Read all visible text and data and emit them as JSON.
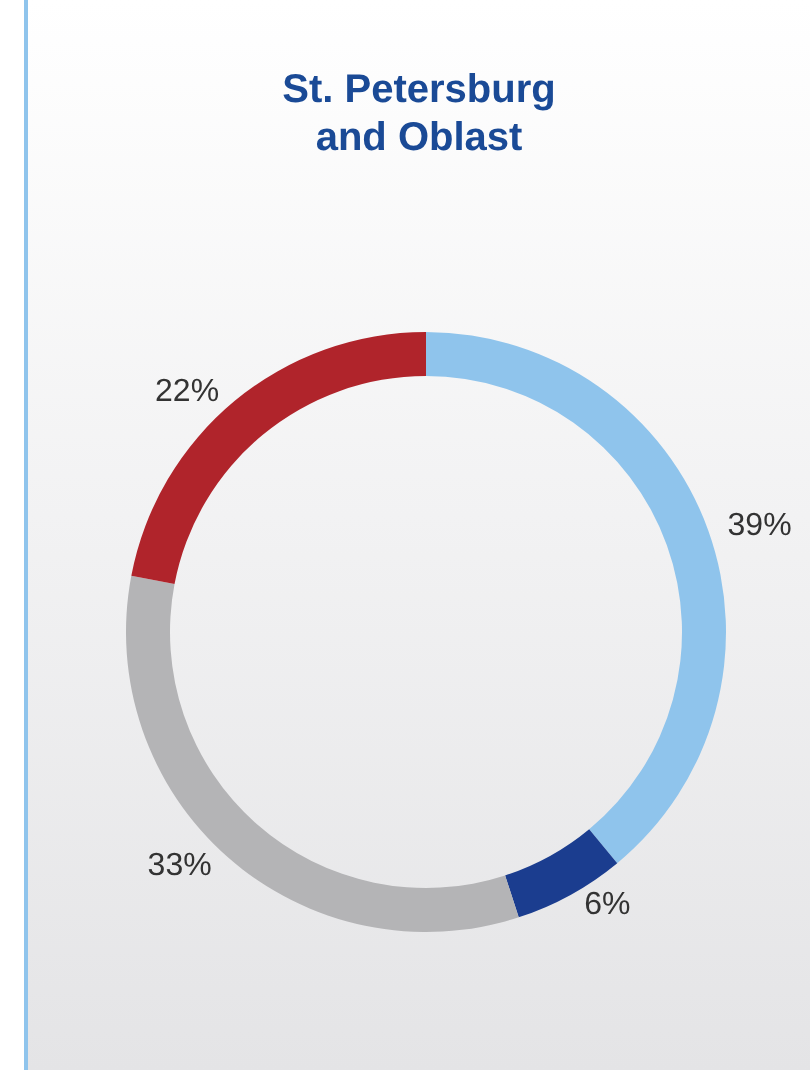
{
  "chart_data": {
    "type": "donut",
    "title": "St. Petersburg\nand Oblast",
    "categories": [
      null,
      null,
      null,
      null
    ],
    "values": [
      39,
      6,
      33,
      22
    ],
    "colors": [
      "#8fc4ec",
      "#1b3d8f",
      "#b4b4b6",
      "#b0242b"
    ],
    "value_labels": [
      "39%",
      "6%",
      "33%",
      "22%"
    ]
  }
}
